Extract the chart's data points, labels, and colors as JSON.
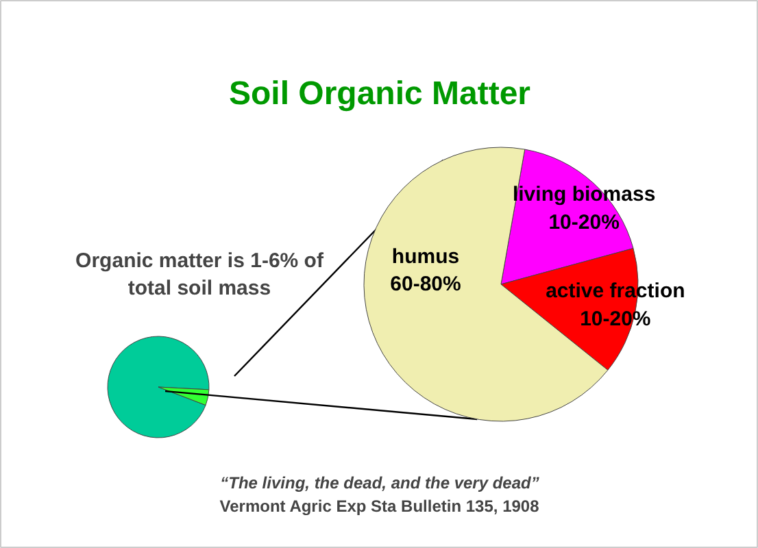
{
  "chart_data": [
    {
      "type": "pie",
      "categories": [
        null,
        null
      ],
      "values": [
        95,
        5
      ],
      "colors": [
        "#00cc99",
        "#33ff33"
      ],
      "annotations": [
        "Organic matter is 1-6% of total soil mass"
      ]
    },
    {
      "type": "pie",
      "title": "Soil Organic Matter",
      "categories": [
        "living biomass 10-20%",
        "active fraction 10-20%",
        "humus 60-80%"
      ],
      "values": [
        18,
        15,
        67
      ],
      "colors": [
        "#ff00ff",
        "#ff0000",
        "#f0eeb0"
      ],
      "annotations": [
        "“The living, the dead, and the very dead”",
        "Vermont Agric Exp Sta Bulletin 135, 1908"
      ]
    }
  ]
}
